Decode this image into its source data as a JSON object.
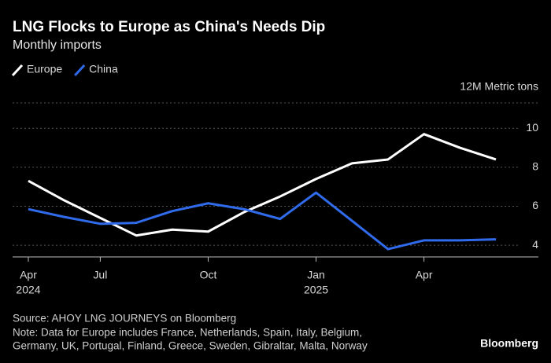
{
  "chart_data": {
    "type": "line",
    "title": "LNG Flocks to Europe as China's Needs Dip",
    "subtitle": "Monthly imports",
    "y_axis_label": "12M Metric tons",
    "x": [
      0,
      1,
      2,
      3,
      4,
      5,
      6,
      7,
      8,
      9,
      10,
      11,
      12,
      13
    ],
    "series": [
      {
        "name": "Europe",
        "color": "#ffffff",
        "values": [
          7.3,
          6.3,
          5.4,
          4.5,
          4.8,
          4.7,
          5.7,
          6.5,
          7.4,
          8.2,
          8.4,
          9.7,
          9.0,
          8.4
        ]
      },
      {
        "name": "China",
        "color": "#2f6bea",
        "values": [
          5.85,
          5.45,
          5.1,
          5.15,
          5.75,
          6.15,
          5.85,
          5.35,
          6.7,
          5.25,
          3.8,
          4.25,
          4.25,
          4.3
        ]
      }
    ],
    "xlim": [
      0,
      13
    ],
    "xticks": [
      {
        "value": 0,
        "label": "Apr"
      },
      {
        "value": 2,
        "label": "Jul"
      },
      {
        "value": 5,
        "label": "Oct"
      },
      {
        "value": 8,
        "label": "Jan"
      },
      {
        "value": 11,
        "label": "Apr"
      }
    ],
    "x_year_labels": [
      {
        "value": 0,
        "label": "2024"
      },
      {
        "value": 8,
        "label": "2025"
      }
    ],
    "ylim": [
      3.4,
      11.3
    ],
    "yticks": [
      4,
      6,
      8,
      10
    ],
    "grid": true,
    "legend": "top-left",
    "source": "Source: AHOY LNG JOURNEYS on Bloomberg",
    "note": [
      "Note: Data for Europe includes France, Netherlands, Spain, Italy, Belgium,",
      "Germany, UK, Portugal, Finland, Greece, Sweden, Gibraltar, Malta, Norway"
    ],
    "brand": "Bloomberg"
  }
}
